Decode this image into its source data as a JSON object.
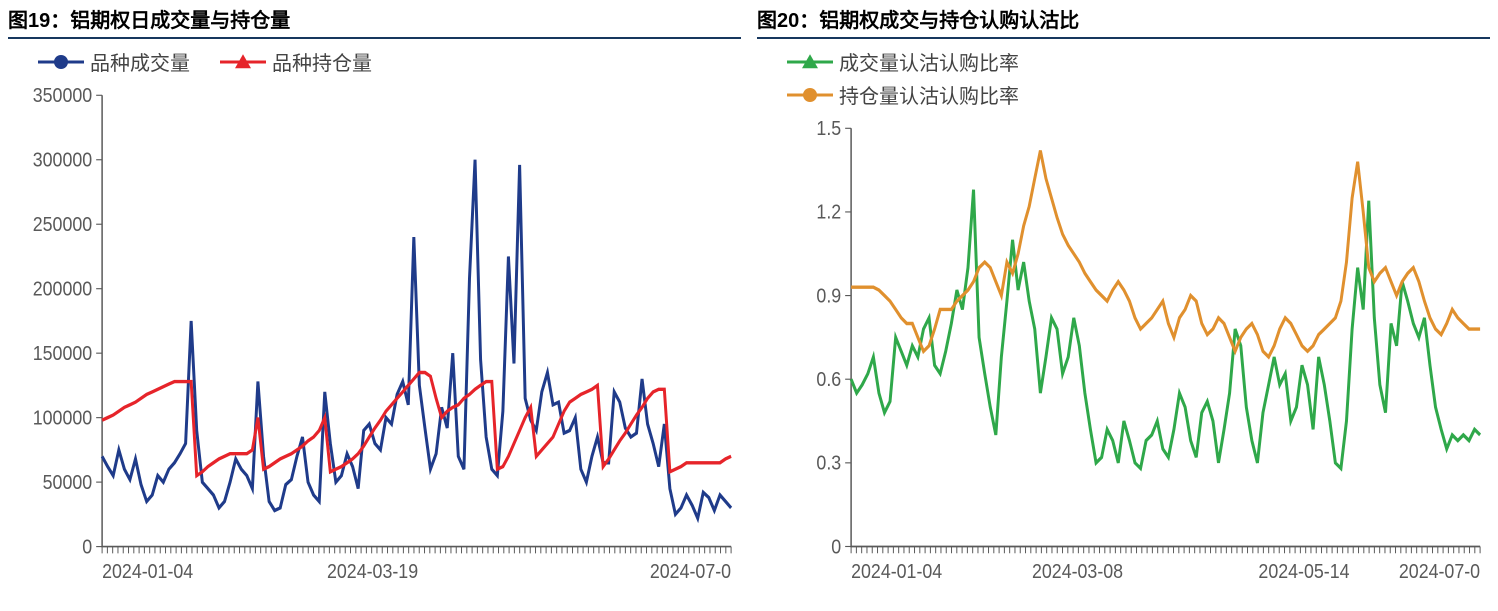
{
  "left": {
    "title": "图19：铝期权日成交量与持仓量",
    "legend": [
      {
        "label": "品种成交量",
        "color": "#1f3b8a",
        "marker": "circle"
      },
      {
        "label": "品种持仓量",
        "color": "#e6242a",
        "marker": "triangle"
      }
    ],
    "chart": {
      "type": "line",
      "ylim": [
        0,
        350000
      ],
      "yticks": [
        0,
        50000,
        100000,
        150000,
        200000,
        250000,
        300000,
        350000
      ],
      "xlabels": [
        "2024-01-04",
        "2024-03-19",
        "2024-07-0"
      ],
      "xtick_positions": [
        0,
        43,
        100
      ],
      "xtick_density": 120,
      "axis_color": "#595959",
      "label_color": "#595959",
      "label_fontsize": 18,
      "background": "#ffffff",
      "line_width": 3,
      "series1": {
        "color": "#1f3b8a",
        "values": [
          70000,
          62000,
          55000,
          75000,
          60000,
          52000,
          68000,
          48000,
          35000,
          40000,
          55000,
          50000,
          60000,
          65000,
          72000,
          80000,
          175000,
          90000,
          50000,
          45000,
          40000,
          30000,
          35000,
          50000,
          68000,
          60000,
          55000,
          45000,
          128000,
          70000,
          35000,
          28000,
          30000,
          48000,
          52000,
          70000,
          85000,
          50000,
          40000,
          35000,
          120000,
          80000,
          50000,
          55000,
          72000,
          62000,
          45000,
          90000,
          95000,
          80000,
          75000,
          100000,
          95000,
          118000,
          128000,
          110000,
          240000,
          125000,
          92000,
          60000,
          72000,
          108000,
          92000,
          150000,
          70000,
          60000,
          208000,
          300000,
          145000,
          85000,
          60000,
          55000,
          105000,
          225000,
          142000,
          296000,
          115000,
          98000,
          90000,
          120000,
          135000,
          110000,
          112000,
          88000,
          90000,
          100000,
          60000,
          50000,
          70000,
          85000,
          65000,
          65000,
          120000,
          112000,
          92000,
          85000,
          88000,
          130000,
          95000,
          80000,
          62000,
          95000,
          45000,
          25000,
          30000,
          40000,
          32000,
          22000,
          42000,
          38000,
          28000,
          40000,
          35000,
          30000
        ]
      },
      "series2": {
        "color": "#e6242a",
        "values": [
          98000,
          100000,
          102000,
          105000,
          108000,
          110000,
          112000,
          115000,
          118000,
          120000,
          122000,
          124000,
          126000,
          128000,
          128000,
          128000,
          128000,
          55000,
          58000,
          62000,
          65000,
          68000,
          70000,
          72000,
          72000,
          72000,
          72000,
          75000,
          100000,
          60000,
          62000,
          65000,
          68000,
          70000,
          72000,
          75000,
          78000,
          82000,
          85000,
          90000,
          100000,
          58000,
          60000,
          62000,
          65000,
          68000,
          72000,
          78000,
          85000,
          92000,
          98000,
          105000,
          110000,
          115000,
          120000,
          125000,
          130000,
          135000,
          135000,
          132000,
          115000,
          100000,
          105000,
          108000,
          110000,
          115000,
          118000,
          122000,
          125000,
          128000,
          128000,
          60000,
          62000,
          70000,
          80000,
          90000,
          100000,
          108000,
          70000,
          75000,
          80000,
          85000,
          95000,
          105000,
          112000,
          115000,
          118000,
          120000,
          122000,
          125000,
          62000,
          68000,
          75000,
          82000,
          88000,
          95000,
          102000,
          108000,
          115000,
          120000,
          122000,
          122000,
          58000,
          60000,
          62000,
          65000,
          65000,
          65000,
          65000,
          65000,
          65000,
          65000,
          68000,
          70000
        ]
      }
    }
  },
  "right": {
    "title": "图20：铝期权成交与持仓认购认沽比",
    "legend": [
      {
        "label": "成交量认沽认购比率",
        "color": "#2fa84a",
        "marker": "triangle"
      },
      {
        "label": "持仓量认沽认购比率",
        "color": "#e0902e",
        "marker": "circle"
      }
    ],
    "chart": {
      "type": "line",
      "ylim": [
        0,
        1.5
      ],
      "yticks": [
        0,
        0.3,
        0.6,
        0.9,
        1.2,
        1.5
      ],
      "xlabels": [
        "2024-01-04",
        "2024-03-08",
        "2024-05-14",
        "2024-07-0"
      ],
      "xtick_positions": [
        0,
        36,
        72,
        100
      ],
      "xtick_density": 120,
      "axis_color": "#595959",
      "label_color": "#595959",
      "label_fontsize": 18,
      "background": "#ffffff",
      "line_width": 3,
      "series1": {
        "color": "#2fa84a",
        "values": [
          0.6,
          0.55,
          0.58,
          0.62,
          0.68,
          0.55,
          0.48,
          0.52,
          0.75,
          0.7,
          0.65,
          0.72,
          0.68,
          0.78,
          0.82,
          0.65,
          0.62,
          0.7,
          0.8,
          0.92,
          0.85,
          1.0,
          1.28,
          0.75,
          0.62,
          0.5,
          0.4,
          0.68,
          0.88,
          1.1,
          0.92,
          1.02,
          0.88,
          0.78,
          0.55,
          0.68,
          0.82,
          0.78,
          0.62,
          0.68,
          0.82,
          0.72,
          0.55,
          0.42,
          0.3,
          0.32,
          0.42,
          0.38,
          0.3,
          0.45,
          0.38,
          0.3,
          0.28,
          0.38,
          0.4,
          0.45,
          0.35,
          0.32,
          0.42,
          0.55,
          0.5,
          0.38,
          0.32,
          0.48,
          0.52,
          0.45,
          0.3,
          0.42,
          0.55,
          0.78,
          0.72,
          0.5,
          0.38,
          0.3,
          0.48,
          0.58,
          0.68,
          0.58,
          0.62,
          0.45,
          0.5,
          0.65,
          0.58,
          0.42,
          0.68,
          0.58,
          0.45,
          0.3,
          0.28,
          0.45,
          0.78,
          1.0,
          0.85,
          1.24,
          0.82,
          0.58,
          0.48,
          0.8,
          0.72,
          0.95,
          0.88,
          0.8,
          0.75,
          0.82,
          0.65,
          0.5,
          0.42,
          0.35,
          0.4,
          0.38,
          0.4,
          0.38,
          0.42,
          0.4
        ]
      },
      "series2": {
        "color": "#e0902e",
        "values": [
          0.93,
          0.93,
          0.93,
          0.93,
          0.93,
          0.92,
          0.9,
          0.88,
          0.85,
          0.82,
          0.8,
          0.8,
          0.75,
          0.7,
          0.72,
          0.78,
          0.85,
          0.85,
          0.85,
          0.88,
          0.9,
          0.92,
          0.95,
          1.0,
          1.02,
          1.0,
          0.95,
          0.9,
          1.02,
          0.98,
          1.05,
          1.15,
          1.22,
          1.32,
          1.42,
          1.32,
          1.25,
          1.18,
          1.12,
          1.08,
          1.05,
          1.02,
          0.98,
          0.95,
          0.92,
          0.9,
          0.88,
          0.92,
          0.95,
          0.92,
          0.88,
          0.82,
          0.78,
          0.8,
          0.82,
          0.85,
          0.88,
          0.8,
          0.75,
          0.82,
          0.85,
          0.9,
          0.88,
          0.8,
          0.76,
          0.78,
          0.82,
          0.8,
          0.75,
          0.7,
          0.75,
          0.78,
          0.8,
          0.76,
          0.7,
          0.68,
          0.72,
          0.78,
          0.82,
          0.8,
          0.76,
          0.72,
          0.7,
          0.72,
          0.76,
          0.78,
          0.8,
          0.82,
          0.88,
          1.02,
          1.25,
          1.38,
          1.2,
          1.0,
          0.95,
          0.98,
          1.0,
          0.95,
          0.9,
          0.95,
          0.98,
          1.0,
          0.95,
          0.88,
          0.82,
          0.78,
          0.76,
          0.8,
          0.85,
          0.82,
          0.8,
          0.78,
          0.78,
          0.78
        ]
      }
    }
  }
}
